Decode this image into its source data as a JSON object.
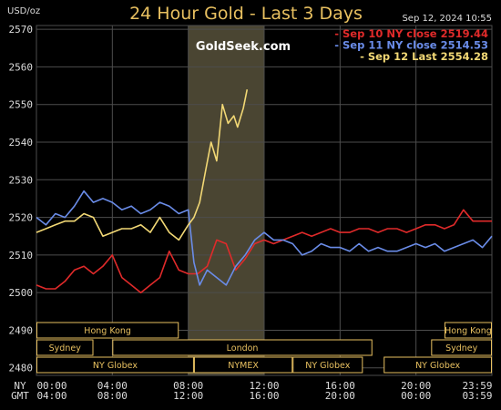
{
  "header": {
    "unit": "USD/oz",
    "title": "24 Hour Gold - Last 3 Days",
    "timestamp": "Sep 12, 2024  10:55",
    "brand": "GoldSeek.com"
  },
  "colors": {
    "background": "#000000",
    "grid": "#4d4d4d",
    "highlight": "#4a4532",
    "sep10": "#e02a2a",
    "sep11": "#6a8ce8",
    "sep12": "#f2d875",
    "session": "#e8c060"
  },
  "chart_data": {
    "type": "line",
    "title": "24 Hour Gold - Last 3 Days",
    "ylabel": "USD/oz",
    "ylim": [
      2478,
      2571
    ],
    "xlim": [
      0,
      24
    ],
    "yticks": [
      "2570",
      "2560",
      "2550",
      "2540",
      "2530",
      "2520",
      "2510",
      "2500",
      "2490",
      "2480"
    ],
    "xticks": [
      {
        "ny": "00:00",
        "gmt": "04:00"
      },
      {
        "ny": "04:00",
        "gmt": "08:00"
      },
      {
        "ny": "08:00",
        "gmt": "12:00"
      },
      {
        "ny": "12:00",
        "gmt": "16:00"
      },
      {
        "ny": "16:00",
        "gmt": "20:00"
      },
      {
        "ny": "20:00",
        "gmt": "00:00"
      },
      {
        "ny": "23:59",
        "gmt": "03:59"
      }
    ],
    "xaxis_rows": [
      "NY",
      "GMT"
    ],
    "highlight_range": [
      8,
      12
    ],
    "series": [
      {
        "name": "Sep 10 NY close 2519.44",
        "x": [
          0,
          0.5,
          1,
          1.5,
          2,
          2.5,
          3,
          3.5,
          4,
          4.5,
          5,
          5.5,
          6,
          6.5,
          7,
          7.5,
          8,
          8.5,
          9,
          9.5,
          10,
          10.5,
          11,
          11.5,
          12,
          12.5,
          13,
          13.5,
          14,
          14.5,
          15,
          15.5,
          16,
          16.5,
          17,
          17.5,
          18,
          18.5,
          19,
          19.5,
          20,
          20.5,
          21,
          21.5,
          22,
          22.5,
          23,
          23.5,
          24
        ],
        "y": [
          2502,
          2501,
          2501,
          2503,
          2506,
          2507,
          2505,
          2507,
          2510,
          2504,
          2502,
          2500,
          2502,
          2504,
          2511,
          2506,
          2505,
          2505,
          2507,
          2514,
          2513,
          2506,
          2509,
          2513,
          2514,
          2513,
          2514,
          2515,
          2516,
          2515,
          2516,
          2517,
          2516,
          2516,
          2517,
          2517,
          2516,
          2517,
          2517,
          2516,
          2517,
          2518,
          2518,
          2517,
          2518,
          2522,
          2519,
          2519,
          2519
        ]
      },
      {
        "name": "Sep 11 NY close 2514.53",
        "x": [
          0,
          0.5,
          1,
          1.5,
          2,
          2.5,
          3,
          3.5,
          4,
          4.5,
          5,
          5.5,
          6,
          6.5,
          7,
          7.5,
          8,
          8.3,
          8.6,
          9,
          9.5,
          10,
          10.5,
          11,
          11.5,
          12,
          12.5,
          13,
          13.5,
          14,
          14.5,
          15,
          15.5,
          16,
          16.5,
          17,
          17.5,
          18,
          18.5,
          19,
          19.5,
          20,
          20.5,
          21,
          21.5,
          22,
          22.5,
          23,
          23.5,
          24
        ],
        "y": [
          2520,
          2518,
          2521,
          2520,
          2523,
          2527,
          2524,
          2525,
          2524,
          2522,
          2523,
          2521,
          2522,
          2524,
          2523,
          2521,
          2522,
          2508,
          2502,
          2506,
          2504,
          2502,
          2507,
          2510,
          2514,
          2516,
          2514,
          2514,
          2513,
          2510,
          2511,
          2513,
          2512,
          2512,
          2511,
          2513,
          2511,
          2512,
          2511,
          2511,
          2512,
          2513,
          2512,
          2513,
          2511,
          2512,
          2513,
          2514,
          2512,
          2515
        ]
      },
      {
        "name": "Sep 12 Last 2554.28",
        "x": [
          0,
          0.5,
          1,
          1.5,
          2,
          2.5,
          3,
          3.5,
          4,
          4.5,
          5,
          5.5,
          6,
          6.5,
          7,
          7.5,
          8,
          8.3,
          8.6,
          8.9,
          9.2,
          9.5,
          9.8,
          10.1,
          10.4,
          10.6,
          10.9,
          11.1
        ],
        "y": [
          2516,
          2517,
          2518,
          2519,
          2519,
          2521,
          2520,
          2515,
          2516,
          2517,
          2517,
          2518,
          2516,
          2520,
          2516,
          2514,
          2518,
          2520,
          2524,
          2532,
          2540,
          2535,
          2550,
          2545,
          2547,
          2544,
          2549,
          2554
        ]
      }
    ],
    "legend": [
      {
        "label": "- Sep 10 NY close 2519.44",
        "color": "#e02a2a"
      },
      {
        "label": "- Sep 11 NY close 2514.53",
        "color": "#6a8ce8"
      },
      {
        "label": "- Sep 12 Last 2554.28",
        "color": "#f2d875"
      }
    ],
    "legend_position": "top-right",
    "sessions": [
      {
        "label": "Hong Kong",
        "from": 0,
        "to": 7.5,
        "row": 0
      },
      {
        "label": "Hong Kong",
        "from": 21.5,
        "to": 24,
        "row": 0
      },
      {
        "label": "Sydney",
        "from": 0,
        "to": 3,
        "row": 1
      },
      {
        "label": "London",
        "from": 4,
        "to": 17.7,
        "row": 1
      },
      {
        "label": "Sydney",
        "from": 20.8,
        "to": 24,
        "row": 1
      },
      {
        "label": "NY Globex",
        "from": 0,
        "to": 8.3,
        "row": 2
      },
      {
        "label": "NYMEX",
        "from": 8.3,
        "to": 13.5,
        "row": 2
      },
      {
        "label": "NY Globex",
        "from": 13.5,
        "to": 17.2,
        "row": 2
      },
      {
        "label": "NY Globex",
        "from": 18.3,
        "to": 24,
        "row": 2
      }
    ]
  }
}
